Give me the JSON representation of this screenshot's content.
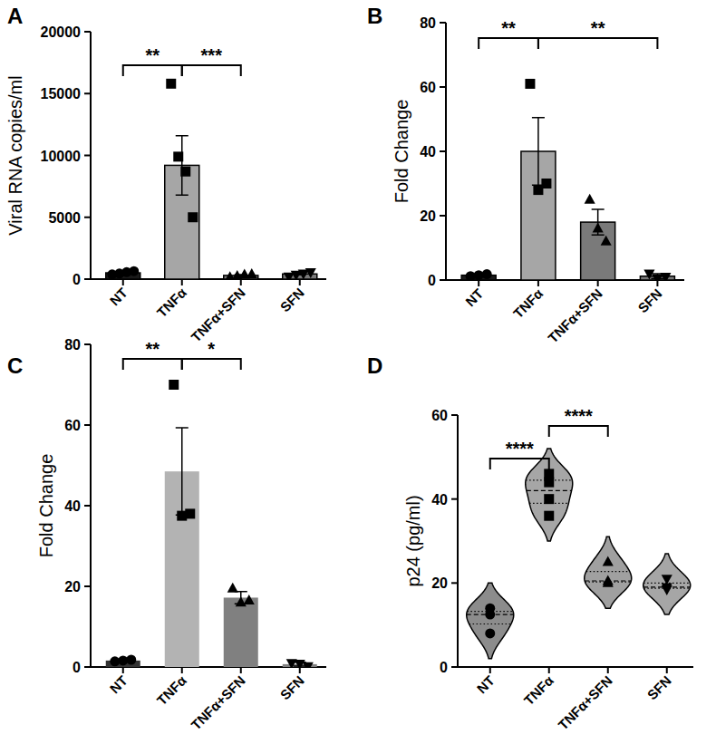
{
  "chart_data": [
    {
      "panel": "A",
      "type": "bar",
      "y_label": "Viral RNA copies/ml",
      "categories": [
        "NT",
        "TNFα",
        "TNFα+SFN",
        "SFN"
      ],
      "values": [
        510,
        9200,
        300,
        420
      ],
      "errors": [
        70,
        2400,
        60,
        80
      ],
      "colors": [
        "#1a1a1a",
        "#a6a6a6",
        "#7a7a7a",
        "#7a7a7a"
      ],
      "points": [
        {
          "marker": "circle",
          "values": [
            380,
            450,
            560,
            650
          ]
        },
        {
          "marker": "square",
          "values": [
            15800,
            9900,
            8700,
            5000
          ]
        },
        {
          "marker": "triangle",
          "values": [
            150,
            250,
            350,
            400
          ]
        },
        {
          "marker": "triangle-down",
          "values": [
            200,
            350,
            450,
            550
          ]
        }
      ],
      "ylim": [
        0,
        20000
      ],
      "yticks": [
        0,
        5000,
        10000,
        15000,
        20000
      ],
      "annotations": [
        {
          "between": [
            "NT",
            "TNFα"
          ],
          "text": "**"
        },
        {
          "between": [
            "TNFα",
            "TNFα+SFN"
          ],
          "text": "***"
        }
      ]
    },
    {
      "panel": "B",
      "type": "bar",
      "y_label": "Fold Change",
      "categories": [
        "NT",
        "TNFα",
        "TNFα+SFN",
        "SFN"
      ],
      "values": [
        1.5,
        40,
        18,
        1.2
      ],
      "errors": [
        0.3,
        10.5,
        4,
        0.8
      ],
      "colors": [
        "#1a1a1a",
        "#a6a6a6",
        "#7a7a7a",
        "#7a7a7a"
      ],
      "points": [
        {
          "marker": "circle",
          "values": [
            1.2,
            1.5,
            1.8
          ]
        },
        {
          "marker": "square",
          "values": [
            61,
            28,
            30
          ]
        },
        {
          "marker": "triangle",
          "values": [
            25,
            16,
            12
          ]
        },
        {
          "marker": "triangle-down",
          "values": [
            2,
            0.5,
            1
          ]
        }
      ],
      "ylim": [
        0,
        80
      ],
      "yticks": [
        0,
        20,
        40,
        60,
        80
      ],
      "annotations": [
        {
          "between": [
            "NT",
            "TNFα"
          ],
          "text": "**"
        },
        {
          "between": [
            "TNFα",
            "SFN"
          ],
          "text": "**"
        }
      ]
    },
    {
      "panel": "C",
      "type": "bar",
      "y_label": "Fold Change",
      "categories": [
        "NT",
        "TNFα",
        "TNFα+SFN",
        "SFN"
      ],
      "values": [
        1.6,
        48.5,
        17.2,
        0.7
      ],
      "errors": [
        0.2,
        10.8,
        1.5,
        0.5
      ],
      "colors": [
        "#333333",
        "#b3b3b3",
        "#808080",
        "#808080"
      ],
      "points": [
        {
          "marker": "circle",
          "values": [
            1.4,
            1.6,
            1.8
          ]
        },
        {
          "marker": "square",
          "values": [
            70,
            37.5,
            38
          ]
        },
        {
          "marker": "triangle",
          "values": [
            19.5,
            16,
            16.5
          ]
        },
        {
          "marker": "triangle-down",
          "values": [
            1,
            0.8,
            0.2
          ]
        }
      ],
      "ylim": [
        0,
        80
      ],
      "yticks": [
        0,
        20,
        40,
        60,
        80
      ],
      "annotations": [
        {
          "between": [
            "NT",
            "TNFα"
          ],
          "text": "**"
        },
        {
          "between": [
            "TNFα",
            "TNFα+SFN"
          ],
          "text": "*"
        }
      ]
    },
    {
      "panel": "D",
      "type": "violin",
      "y_label": "p24 (pg/ml)",
      "categories": [
        "NT",
        "TNFα",
        "TNFα+SFN",
        "SFN"
      ],
      "colors": [
        "#8c8c8c",
        "#a6a6a6",
        "#a0a0a0",
        "#a6a6a6"
      ],
      "points": [
        {
          "marker": "circle",
          "values": [
            14,
            12.5,
            8
          ]
        },
        {
          "marker": "square",
          "values": [
            46,
            44,
            40,
            36
          ]
        },
        {
          "marker": "triangle",
          "values": [
            25,
            20.5,
            20
          ]
        },
        {
          "marker": "triangle-down",
          "values": [
            21,
            19,
            18.5
          ]
        }
      ],
      "ylim": [
        0,
        60
      ],
      "yticks": [
        0,
        20,
        40,
        60
      ],
      "annotations": [
        {
          "between": [
            "NT",
            "TNFα"
          ],
          "text": "****"
        },
        {
          "between": [
            "TNFα",
            "TNFα+SFN"
          ],
          "text": "****"
        }
      ]
    }
  ]
}
